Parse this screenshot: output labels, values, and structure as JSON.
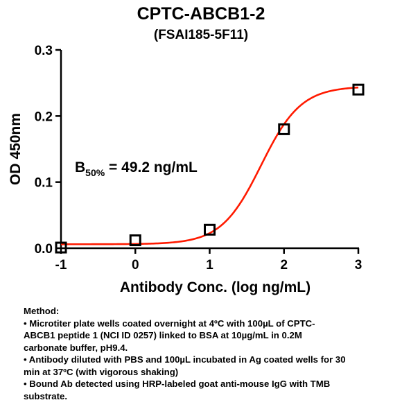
{
  "chart_data": {
    "type": "scatter",
    "title": "CPTC-ABCB1-2",
    "subtitle": "(FSAI185-5F11)",
    "xlabel": "Antibody Conc. (log ng/mL)",
    "ylabel": "OD 450nm",
    "xlim": [
      -1,
      3
    ],
    "ylim": [
      0,
      0.3
    ],
    "x_ticks": [
      "-1",
      "0",
      "1",
      "2",
      "3"
    ],
    "y_ticks": [
      "0.0",
      "0.1",
      "0.2",
      "0.3"
    ],
    "x_tick_values": [
      -1,
      0,
      1,
      2,
      3
    ],
    "y_tick_values": [
      0,
      0.1,
      0.2,
      0.3
    ],
    "points": [
      {
        "x": -1,
        "y": 0.001
      },
      {
        "x": 0,
        "y": 0.012
      },
      {
        "x": 1,
        "y": 0.028
      },
      {
        "x": 2,
        "y": 0.18
      },
      {
        "x": 3,
        "y": 0.24
      }
    ],
    "fit": {
      "bottom": 0.006,
      "top": 0.245,
      "log_ec50": 1.692,
      "hill": 1.62
    },
    "curve_color": "#ff1a00",
    "marker_color": "#000000",
    "grid": false,
    "annotation": {
      "prefix": "B",
      "subscript": "50%",
      "text": " = 49.2 ng/mL"
    }
  },
  "method": {
    "heading": "Method:",
    "lines": [
      "• Microtiter plate wells coated overnight at 4ºC  with 100µL of CPTC-",
      "ABCB1 peptide 1 (NCI ID 0257) linked to BSA at 10µg/mL in 0.2M",
      "carbonate buffer, pH9.4.",
      "• Antibody diluted with PBS and 100µL incubated in Ag coated wells for 30",
      "min at 37ºC (with vigorous shaking)",
      "• Bound Ab detected using HRP-labeled goat anti-mouse IgG with TMB",
      "substrate."
    ]
  }
}
